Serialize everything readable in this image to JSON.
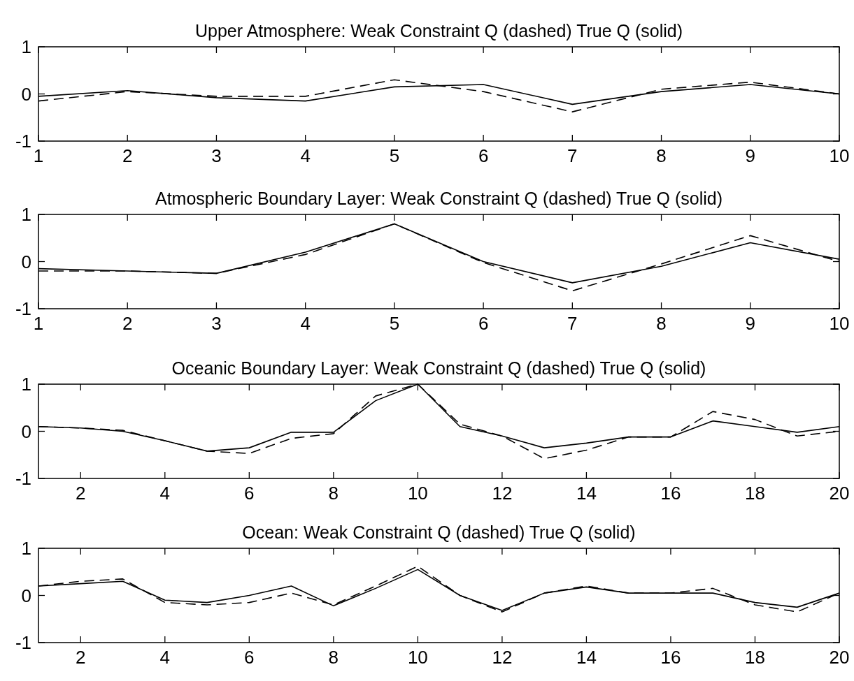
{
  "chart_data": [
    {
      "type": "line",
      "title": "Upper Atmosphere: Weak Constraint Q (dashed) True Q (solid)",
      "x": [
        1,
        2,
        3,
        4,
        5,
        6,
        7,
        8,
        9,
        10
      ],
      "xlim": [
        1,
        10
      ],
      "xticks": [
        1,
        2,
        3,
        4,
        5,
        6,
        7,
        8,
        9,
        10
      ],
      "ylim": [
        -1,
        1
      ],
      "yticks": [
        -1,
        0,
        1
      ],
      "grid": false,
      "marker": "none",
      "series": [
        {
          "color": "#000000",
          "line_style": "dashed",
          "values": [
            -0.15,
            0.05,
            -0.05,
            -0.05,
            0.3,
            0.05,
            -0.38,
            0.1,
            0.25,
            0.0
          ]
        },
        {
          "color": "#000000",
          "line_style": "solid",
          "values": [
            -0.05,
            0.07,
            -0.08,
            -0.15,
            0.15,
            0.2,
            -0.22,
            0.05,
            0.2,
            0.0
          ]
        }
      ]
    },
    {
      "type": "line",
      "title": "Atmospheric Boundary Layer: Weak Constraint Q (dashed) True Q (solid)",
      "x": [
        1,
        2,
        3,
        4,
        5,
        6,
        7,
        8,
        9,
        10
      ],
      "xlim": [
        1,
        10
      ],
      "xticks": [
        1,
        2,
        3,
        4,
        5,
        6,
        7,
        8,
        9,
        10
      ],
      "ylim": [
        -1,
        1
      ],
      "yticks": [
        -1,
        0,
        1
      ],
      "grid": false,
      "marker": "none",
      "series": [
        {
          "color": "#000000",
          "line_style": "dashed",
          "values": [
            -0.2,
            -0.2,
            -0.25,
            0.15,
            0.8,
            -0.02,
            -0.62,
            -0.05,
            0.55,
            0.0
          ]
        },
        {
          "color": "#000000",
          "line_style": "solid",
          "values": [
            -0.15,
            -0.2,
            -0.25,
            0.2,
            0.8,
            0.0,
            -0.45,
            -0.1,
            0.4,
            0.05
          ]
        }
      ]
    },
    {
      "type": "line",
      "title": "Oceanic Boundary Layer: Weak Constraint Q (dashed) True Q (solid)",
      "x": [
        1,
        2,
        3,
        4,
        5,
        6,
        7,
        8,
        9,
        10,
        11,
        12,
        13,
        14,
        15,
        16,
        17,
        18,
        19,
        20
      ],
      "xlim": [
        1,
        20
      ],
      "xticks": [
        2,
        4,
        6,
        8,
        10,
        12,
        14,
        16,
        18,
        20
      ],
      "ylim": [
        -1,
        1
      ],
      "yticks": [
        -1,
        0,
        1
      ],
      "grid": false,
      "marker": "none",
      "series": [
        {
          "color": "#000000",
          "line_style": "dashed",
          "values": [
            0.1,
            0.07,
            0.02,
            -0.2,
            -0.42,
            -0.47,
            -0.15,
            -0.05,
            0.75,
            1.0,
            0.15,
            -0.1,
            -0.58,
            -0.4,
            -0.12,
            -0.12,
            0.42,
            0.25,
            -0.1,
            0.0
          ]
        },
        {
          "color": "#000000",
          "line_style": "solid",
          "values": [
            0.1,
            0.07,
            0.0,
            -0.2,
            -0.42,
            -0.35,
            -0.02,
            -0.02,
            0.65,
            1.0,
            0.1,
            -0.1,
            -0.35,
            -0.25,
            -0.12,
            -0.12,
            0.22,
            0.1,
            -0.02,
            0.1
          ]
        }
      ]
    },
    {
      "type": "line",
      "title": "Ocean: Weak Constraint Q (dashed) True Q (solid)",
      "x": [
        1,
        2,
        3,
        4,
        5,
        6,
        7,
        8,
        9,
        10,
        11,
        12,
        13,
        14,
        15,
        16,
        17,
        18,
        19,
        20
      ],
      "xlim": [
        1,
        20
      ],
      "xticks": [
        2,
        4,
        6,
        8,
        10,
        12,
        14,
        16,
        18,
        20
      ],
      "ylim": [
        -1,
        1
      ],
      "yticks": [
        -1,
        0,
        1
      ],
      "grid": false,
      "marker": "none",
      "series": [
        {
          "color": "#000000",
          "line_style": "dashed",
          "values": [
            0.2,
            0.3,
            0.35,
            -0.15,
            -0.2,
            -0.15,
            0.05,
            -0.2,
            0.2,
            0.62,
            0.0,
            -0.35,
            0.05,
            0.2,
            0.05,
            0.05,
            0.15,
            -0.2,
            -0.35,
            0.05
          ]
        },
        {
          "color": "#000000",
          "line_style": "solid",
          "values": [
            0.2,
            0.25,
            0.3,
            -0.1,
            -0.15,
            0.0,
            0.2,
            -0.22,
            0.15,
            0.55,
            0.0,
            -0.32,
            0.05,
            0.18,
            0.05,
            0.05,
            0.05,
            -0.15,
            -0.25,
            0.05
          ]
        }
      ]
    }
  ]
}
